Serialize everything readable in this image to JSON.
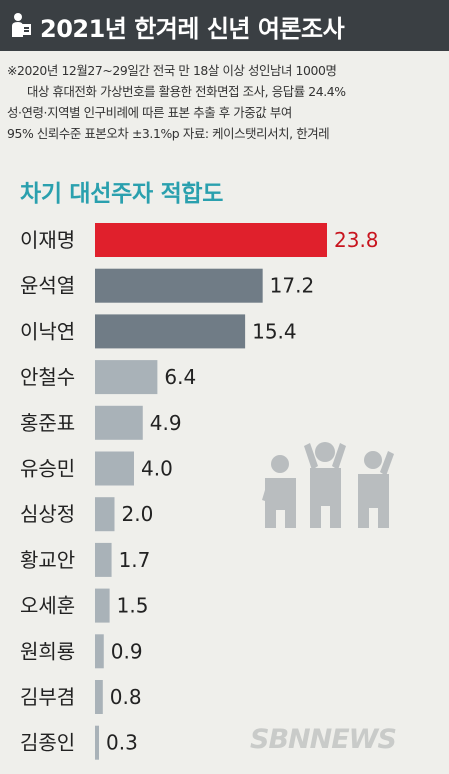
{
  "header": {
    "icon": "poll-icon",
    "title": "2021년 한겨레 신년 여론조사"
  },
  "notes": [
    "※2020년 12월27~29일간 전국 만 18살 이상 성인남녀 1000명",
    "대상 휴대전화 가상번호를 활용한 전화면접 조사, 응답률 24.4%",
    "성·연령·지역별 인구비례에 따른 표본 추출 후 가중값 부여",
    "95% 신뢰수준 표본오차 ±3.1%p  자료: 케이스탯리서치, 한겨레"
  ],
  "logo_text": "SBNNEWS",
  "chart_data": {
    "type": "bar",
    "orientation": "horizontal",
    "title": "차기 대선주자 적합도",
    "categories": [
      "이재명",
      "윤석열",
      "이낙연",
      "안철수",
      "홍준표",
      "유승민",
      "심상정",
      "황교안",
      "오세훈",
      "원희룡",
      "김부겸",
      "김종인"
    ],
    "values": [
      23.8,
      17.2,
      15.4,
      6.4,
      4.9,
      4.0,
      2.0,
      1.7,
      1.5,
      0.9,
      0.8,
      0.3
    ],
    "value_labels": [
      "23.8",
      "17.2",
      "15.4",
      "6.4",
      "4.9",
      "4.0",
      "2.0",
      "1.7",
      "1.5",
      "0.9",
      "0.8",
      "0.3"
    ],
    "colors": {
      "highlight": "#e0202c",
      "tier2": "#707c86",
      "tier3": "#a9b2b8",
      "highlight_label": "#c8141e",
      "label": "#222222"
    },
    "xlim": [
      0,
      25
    ],
    "grid": false,
    "decoration": "people-icon"
  }
}
